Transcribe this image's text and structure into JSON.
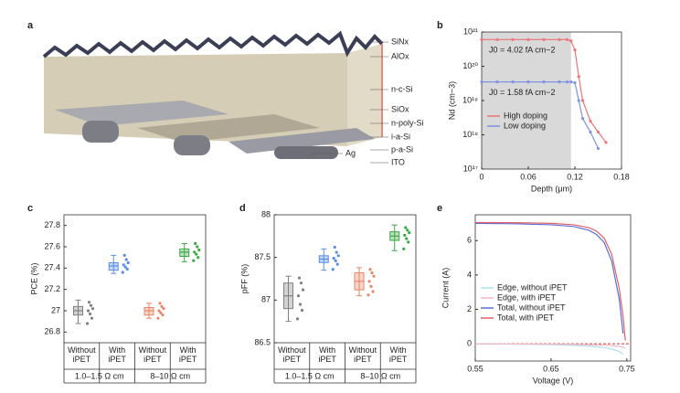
{
  "panel_a": {
    "letter": "a",
    "layers": [
      "SiNx",
      "AlOx",
      "n-c-Si",
      "SiOx",
      "n-poly-Si",
      "i-a-Si",
      "p-a-Si",
      "ITO",
      "Ag"
    ]
  },
  "chart_data": [
    {
      "type": "line",
      "letter": "b",
      "x_label": "Depth (μm)",
      "y_label": "Nd (cm−3)",
      "x": [
        0,
        0.02,
        0.04,
        0.06,
        0.08,
        0.1,
        0.11,
        0.115,
        0.12,
        0.125,
        0.13,
        0.14,
        0.15,
        0.16
      ],
      "series": [
        {
          "name": "High doping",
          "color": "#e8767a",
          "values": [
            6e+20,
            6e+20,
            6e+20,
            6e+20,
            6e+20,
            6e+20,
            6e+20,
            5.5e+20,
            3e+20,
            5e+19,
            1e+19,
            2.5e+18,
            1.2e+18,
            6e+17
          ]
        },
        {
          "name": "Low doping",
          "color": "#7f93e0",
          "values": [
            3.5e+19,
            3.5e+19,
            3.5e+19,
            3.5e+19,
            3.5e+19,
            3.5e+19,
            3.5e+19,
            3.5e+19,
            3.3e+19,
            1e+19,
            3e+18,
            1.2e+18,
            4e+17,
            null
          ]
        }
      ],
      "annotations": [
        "J0 = 4.02 fA cm−2",
        "J0 = 1.58 fA cm−2"
      ],
      "shaded_x": [
        0,
        0.115
      ],
      "shade_color": "#d9d9d9",
      "xlim": [
        0,
        0.18
      ],
      "xticks": [
        0,
        0.06,
        0.12,
        0.18
      ],
      "log_y": true,
      "ylim": [
        1e+17,
        1e+21
      ],
      "yticks": [
        {
          "value": 1e+17,
          "label": "10¹⁷"
        },
        {
          "value": 1e+18,
          "label": "10¹⁸"
        },
        {
          "value": 1e+19,
          "label": "10¹⁹"
        },
        {
          "value": 1e+20,
          "label": "10²⁰"
        },
        {
          "value": 1e+21,
          "label": "10²¹"
        }
      ],
      "legend": "lower left"
    },
    {
      "type": "box",
      "letter": "c",
      "y_label": "PCE (%)",
      "categories": [
        "Without iPET",
        "With iPET",
        "Without iPET",
        "With iPET"
      ],
      "groups": [
        "1.0–1.5 Ω cm",
        "8–10 Ω cm"
      ],
      "boxes": [
        {
          "color": "#808080",
          "low": 26.88,
          "q1": 26.96,
          "median": 27.0,
          "q3": 27.04,
          "high": 27.1,
          "points": [
            26.88,
            26.93,
            26.97,
            27.0,
            27.02,
            27.05,
            27.08
          ]
        },
        {
          "color": "#5b8ee6",
          "low": 27.35,
          "q1": 27.38,
          "median": 27.42,
          "q3": 27.45,
          "high": 27.52,
          "points": [
            27.36,
            27.39,
            27.41,
            27.43,
            27.45,
            27.48,
            27.52
          ]
        },
        {
          "color": "#e8866a",
          "low": 26.93,
          "q1": 26.96,
          "median": 27.0,
          "q3": 27.03,
          "high": 27.07,
          "points": [
            26.93,
            26.96,
            26.98,
            27.0,
            27.02,
            27.04,
            27.07
          ]
        },
        {
          "color": "#3aa845",
          "low": 27.46,
          "q1": 27.51,
          "median": 27.55,
          "q3": 27.58,
          "high": 27.63,
          "points": [
            27.47,
            27.5,
            27.53,
            27.55,
            27.57,
            27.6,
            27.63
          ]
        }
      ],
      "ylim": [
        26.7,
        27.9
      ],
      "yticks": [
        26.8,
        27.0,
        27.2,
        27.4,
        27.6,
        27.8
      ]
    },
    {
      "type": "box",
      "letter": "d",
      "y_label": "pFF (%)",
      "categories": [
        "Without iPET",
        "With iPET",
        "Without iPET",
        "With iPET"
      ],
      "groups": [
        "1.0–1.5 Ω cm",
        "8–10 Ω cm"
      ],
      "boxes": [
        {
          "color": "#808080",
          "low": 86.75,
          "q1": 86.9,
          "median": 87.05,
          "q3": 87.2,
          "high": 87.28,
          "points": [
            86.78,
            86.88,
            86.95,
            87.05,
            87.12,
            87.2,
            87.26
          ]
        },
        {
          "color": "#5b8ee6",
          "low": 87.35,
          "q1": 87.44,
          "median": 87.48,
          "q3": 87.52,
          "high": 87.6,
          "points": [
            87.36,
            87.42,
            87.46,
            87.49,
            87.52,
            87.56,
            87.62
          ]
        },
        {
          "color": "#e8866a",
          "low": 87.05,
          "q1": 87.12,
          "median": 87.22,
          "q3": 87.32,
          "high": 87.38,
          "points": [
            87.06,
            87.1,
            87.16,
            87.22,
            87.28,
            87.32,
            87.36
          ]
        },
        {
          "color": "#3aa845",
          "low": 87.58,
          "q1": 87.7,
          "median": 87.75,
          "q3": 87.8,
          "high": 87.88,
          "points": [
            87.6,
            87.68,
            87.72,
            87.76,
            87.79,
            87.82,
            87.85
          ]
        }
      ],
      "ylim": [
        86.5,
        88
      ],
      "yticks": [
        86.5,
        87,
        87.5,
        88
      ]
    },
    {
      "type": "line",
      "letter": "e",
      "x_label": "Voltage (V)",
      "y_label": "Current (A)",
      "x": [
        0.55,
        0.6,
        0.65,
        0.68,
        0.7,
        0.71,
        0.72,
        0.73,
        0.74,
        0.745,
        0.748
      ],
      "series": [
        {
          "name": "Edge, without iPET",
          "color": "#aee0ee",
          "values": [
            0,
            -0.02,
            -0.05,
            -0.09,
            -0.13,
            -0.17,
            -0.22,
            -0.3,
            -0.45,
            -0.6,
            null
          ]
        },
        {
          "name": "Edge, with iPET",
          "color": "#f2b8c6",
          "values": [
            0,
            -0.01,
            -0.02,
            -0.03,
            -0.05,
            -0.06,
            -0.08,
            -0.1,
            -0.15,
            -0.2,
            -0.25
          ]
        },
        {
          "name": "Total, without iPET",
          "color": "#5a6fd6",
          "values": [
            7.0,
            6.98,
            6.92,
            6.82,
            6.6,
            6.35,
            5.9,
            4.8,
            2.6,
            0.6,
            null
          ]
        },
        {
          "name": "Total, with iPET",
          "color": "#e0606a",
          "values": [
            7.05,
            7.04,
            7.0,
            6.92,
            6.75,
            6.55,
            6.15,
            5.2,
            3.2,
            1.6,
            0.2
          ]
        }
      ],
      "reference_y": 0,
      "reference_color": "#d33",
      "xlim": [
        0.55,
        0.755
      ],
      "xticks": [
        0.55,
        0.65,
        0.75
      ],
      "ylim": [
        -1,
        7.5
      ],
      "yticks": [
        0,
        2,
        4,
        6
      ],
      "legend": "lower left"
    }
  ]
}
